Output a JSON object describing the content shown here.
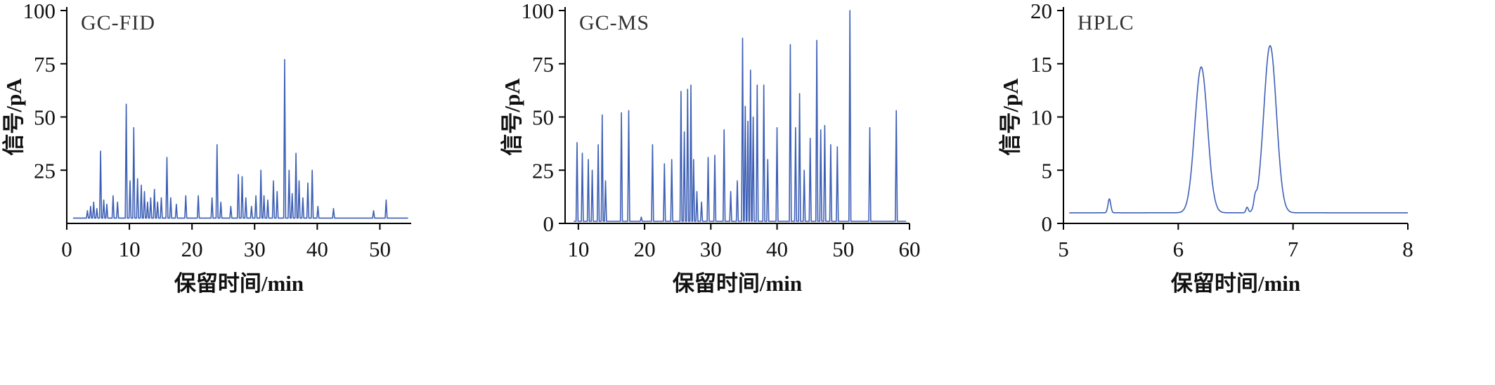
{
  "page": {
    "background": "#ffffff"
  },
  "chart_data": [
    {
      "type": "line",
      "title": "GC-FID",
      "xlabel": "保留时间/min",
      "ylabel": "信号/pA",
      "xlim": [
        0,
        55
      ],
      "ylim": [
        0,
        100
      ],
      "x_ticks": [
        0,
        10,
        20,
        30,
        40,
        50
      ],
      "y_ticks": [
        25,
        50,
        75,
        100
      ],
      "grid": false,
      "legend": "none",
      "line_color": "#3d5fb5",
      "baseline": 2.5,
      "peak_shape": "spike",
      "trace_extent": [
        1.0,
        54.5
      ],
      "peaks": [
        [
          3.3,
          6
        ],
        [
          3.8,
          8
        ],
        [
          4.3,
          10
        ],
        [
          4.8,
          7
        ],
        [
          5.4,
          34
        ],
        [
          5.9,
          11
        ],
        [
          6.4,
          9
        ],
        [
          7.4,
          13
        ],
        [
          8.1,
          10
        ],
        [
          9.5,
          56
        ],
        [
          10.1,
          20
        ],
        [
          10.7,
          45
        ],
        [
          11.3,
          21
        ],
        [
          11.9,
          18
        ],
        [
          12.4,
          15
        ],
        [
          12.9,
          10
        ],
        [
          13.4,
          12
        ],
        [
          14.0,
          16
        ],
        [
          14.5,
          10
        ],
        [
          15.1,
          12
        ],
        [
          16.0,
          31
        ],
        [
          16.6,
          12
        ],
        [
          17.5,
          9
        ],
        [
          19.0,
          13
        ],
        [
          21.0,
          13
        ],
        [
          23.2,
          12
        ],
        [
          24.0,
          37
        ],
        [
          24.6,
          10
        ],
        [
          26.2,
          8
        ],
        [
          27.4,
          23
        ],
        [
          28.0,
          22
        ],
        [
          28.6,
          12
        ],
        [
          29.5,
          8
        ],
        [
          30.2,
          13
        ],
        [
          31.0,
          25
        ],
        [
          31.5,
          13
        ],
        [
          32.1,
          11
        ],
        [
          33.0,
          20
        ],
        [
          33.6,
          15
        ],
        [
          34.8,
          77
        ],
        [
          35.5,
          25
        ],
        [
          36.0,
          14
        ],
        [
          36.6,
          33
        ],
        [
          37.1,
          20
        ],
        [
          37.7,
          12
        ],
        [
          38.5,
          19
        ],
        [
          39.2,
          25
        ],
        [
          40.1,
          8
        ],
        [
          42.6,
          7
        ],
        [
          49.0,
          6
        ],
        [
          51.0,
          11
        ]
      ]
    },
    {
      "type": "line",
      "title": "GC-MS",
      "xlabel": "保留时间/min",
      "ylabel": "信号/pA",
      "xlim": [
        8,
        60
      ],
      "ylim": [
        0,
        100
      ],
      "x_ticks": [
        10,
        20,
        30,
        40,
        50,
        60
      ],
      "y_ticks": [
        0,
        25,
        50,
        75,
        100
      ],
      "grid": false,
      "legend": "none",
      "line_color": "#3d5fb5",
      "baseline": 1,
      "peak_shape": "spike",
      "trace_extent": [
        9.3,
        59.5
      ],
      "peaks": [
        [
          9.8,
          38
        ],
        [
          10.6,
          33
        ],
        [
          11.5,
          30
        ],
        [
          12.1,
          25
        ],
        [
          13.0,
          37
        ],
        [
          13.6,
          51
        ],
        [
          14.1,
          20
        ],
        [
          16.5,
          52
        ],
        [
          17.6,
          53
        ],
        [
          19.5,
          3
        ],
        [
          21.2,
          37
        ],
        [
          23.0,
          28
        ],
        [
          24.1,
          30
        ],
        [
          25.5,
          62
        ],
        [
          26.0,
          43
        ],
        [
          26.5,
          63
        ],
        [
          27.0,
          65
        ],
        [
          27.4,
          30
        ],
        [
          27.9,
          15
        ],
        [
          28.6,
          10
        ],
        [
          29.6,
          31
        ],
        [
          30.6,
          32
        ],
        [
          32.0,
          44
        ],
        [
          33.0,
          15
        ],
        [
          34.0,
          20
        ],
        [
          34.8,
          87
        ],
        [
          35.2,
          55
        ],
        [
          35.6,
          48
        ],
        [
          36.0,
          72
        ],
        [
          36.4,
          50
        ],
        [
          37.0,
          65
        ],
        [
          38.0,
          65
        ],
        [
          38.6,
          30
        ],
        [
          40.0,
          45
        ],
        [
          42.0,
          84
        ],
        [
          42.8,
          45
        ],
        [
          43.4,
          61
        ],
        [
          44.1,
          25
        ],
        [
          45.0,
          40
        ],
        [
          46.0,
          86
        ],
        [
          46.6,
          44
        ],
        [
          47.2,
          46
        ],
        [
          48.1,
          37
        ],
        [
          49.1,
          36
        ],
        [
          51.0,
          100
        ],
        [
          54.0,
          45
        ],
        [
          58.0,
          53
        ]
      ]
    },
    {
      "type": "line",
      "title": "HPLC",
      "xlabel": "保留时间/min",
      "ylabel": "信号/pA",
      "xlim": [
        5,
        8
      ],
      "ylim": [
        0,
        20
      ],
      "x_ticks": [
        5,
        6,
        7,
        8
      ],
      "y_ticks": [
        0,
        5,
        10,
        15,
        20
      ],
      "grid": false,
      "legend": "none",
      "line_color": "#3d5fb5",
      "baseline": 1,
      "peak_shape": "gaussian",
      "trace_extent": [
        5.05,
        8.0
      ],
      "peaks": [
        [
          5.4,
          1.3,
          0.012
        ],
        [
          6.2,
          13.7,
          0.055
        ],
        [
          6.6,
          0.5,
          0.01
        ],
        [
          6.67,
          0.9,
          0.012
        ],
        [
          6.8,
          15.7,
          0.055
        ]
      ]
    }
  ]
}
